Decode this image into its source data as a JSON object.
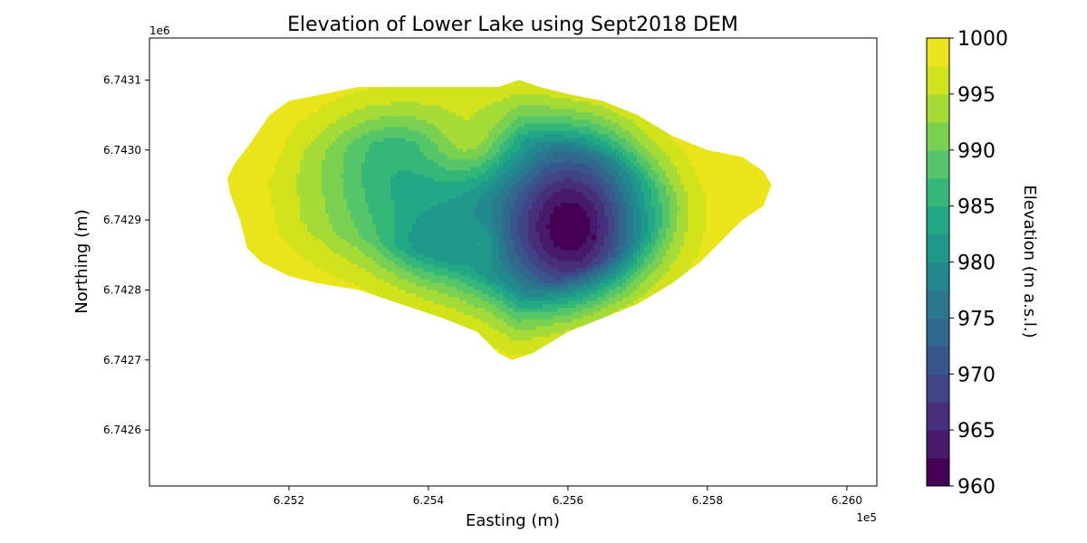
{
  "chart_data": {
    "type": "contour",
    "title": "Elevation of Lower Lake using Sept2018 DEM",
    "xlabel": "Easting (m)",
    "ylabel": "Northing (m)",
    "x_offset_label": "1e5",
    "y_offset_label": "1e6",
    "x_ticks": [
      6.252,
      6.254,
      6.256,
      6.258,
      6.26
    ],
    "x_tick_labels": [
      "6.252",
      "6.254",
      "6.256",
      "6.258",
      "6.260"
    ],
    "y_ticks": [
      6.7426,
      6.7427,
      6.7428,
      6.7429,
      6.743,
      6.7431
    ],
    "y_tick_labels": [
      "6.7426",
      "6.7427",
      "6.7428",
      "6.7429",
      "6.7430",
      "6.7431"
    ],
    "xlim": [
      6.25,
      6.26043
    ],
    "ylim": [
      6.74252,
      6.74316
    ],
    "colorbar": {
      "label": "Elevation (m a.s.l.)",
      "range": [
        960,
        1000
      ],
      "step": 2.5,
      "ticks": [
        960,
        965,
        970,
        975,
        980,
        985,
        990,
        995,
        1000
      ],
      "tick_labels": [
        "960",
        "965",
        "970",
        "975",
        "980",
        "985",
        "990",
        "995",
        "1000"
      ],
      "colormap": "viridis",
      "colors": [
        "#440154",
        "#481a6c",
        "#472f7d",
        "#414487",
        "#39568c",
        "#31688e",
        "#2a788e",
        "#23888e",
        "#1f988b",
        "#22a884",
        "#35b779",
        "#54c568",
        "#7ad151",
        "#a5db36",
        "#d2e21b",
        "#eae51a"
      ]
    },
    "lake_outline": [
      [
        6.25112,
        6.74296
      ],
      [
        6.25122,
        6.74298
      ],
      [
        6.25145,
        6.74301
      ],
      [
        6.25172,
        6.74305
      ],
      [
        6.252,
        6.74307
      ],
      [
        6.2525,
        6.74308
      ],
      [
        6.253,
        6.74309
      ],
      [
        6.2535,
        6.74309
      ],
      [
        6.254,
        6.74309
      ],
      [
        6.2545,
        6.74309
      ],
      [
        6.255,
        6.74309
      ],
      [
        6.2553,
        6.7431
      ],
      [
        6.2556,
        6.74309
      ],
      [
        6.256,
        6.74308
      ],
      [
        6.2565,
        6.74307
      ],
      [
        6.257,
        6.74305
      ],
      [
        6.2575,
        6.74302
      ],
      [
        6.258,
        6.743
      ],
      [
        6.2585,
        6.74299
      ],
      [
        6.2588,
        6.74297
      ],
      [
        6.25892,
        6.74295
      ],
      [
        6.2588,
        6.74292
      ],
      [
        6.2585,
        6.7429
      ],
      [
        6.2582,
        6.74287
      ],
      [
        6.2579,
        6.74284
      ],
      [
        6.2575,
        6.74281
      ],
      [
        6.257,
        6.74278
      ],
      [
        6.2565,
        6.74276
      ],
      [
        6.256,
        6.74274
      ],
      [
        6.2555,
        6.74271
      ],
      [
        6.2552,
        6.7427
      ],
      [
        6.255,
        6.74271
      ],
      [
        6.2547,
        6.74274
      ],
      [
        6.2542,
        6.74276
      ],
      [
        6.2536,
        6.74278
      ],
      [
        6.253,
        6.7428
      ],
      [
        6.2524,
        6.74281
      ],
      [
        6.252,
        6.74282
      ],
      [
        6.2516,
        6.74284
      ],
      [
        6.2514,
        6.74286
      ],
      [
        6.25135,
        6.74288
      ],
      [
        6.2513,
        6.7429
      ],
      [
        6.25115,
        6.74294
      ]
    ],
    "elevation_field": {
      "base_elevation": 1000,
      "components": [
        {
          "kind": "basin",
          "center": [
            6.2553,
            6.74294
          ],
          "radius": [
            0.00275,
            0.0002
          ],
          "depth": 15
        },
        {
          "kind": "basin",
          "center": [
            6.2561,
            6.74289
          ],
          "radius": [
            0.00095,
            0.00013
          ],
          "depth": 22
        },
        {
          "kind": "basin",
          "center": [
            6.2553,
            6.74285
          ],
          "radius": [
            0.0021,
            0.00011
          ],
          "depth": 6
        },
        {
          "kind": "basin",
          "center": [
            6.2533,
            6.74299
          ],
          "radius": [
            0.0009,
            0.0001
          ],
          "depth": 5
        },
        {
          "kind": "basin",
          "center": [
            6.2539,
            6.74286
          ],
          "radius": [
            0.00055,
            5e-05
          ],
          "depth": 4
        },
        {
          "kind": "bump",
          "center": [
            6.2546,
            6.74301
          ],
          "radius": [
            0.0006,
            5e-05
          ],
          "height": 8
        },
        {
          "kind": "bump",
          "center": [
            6.2579,
            6.74294
          ],
          "radius": [
            0.0006,
            9e-05
          ],
          "height": 4
        },
        {
          "kind": "bump",
          "center": [
            6.2548,
            6.74287
          ],
          "radius": [
            0.00025,
            3e-05
          ],
          "height": 4
        }
      ],
      "deepest_point": {
        "easting": 6.25637,
        "northing": 6.742875,
        "elevation": 961
      }
    }
  }
}
